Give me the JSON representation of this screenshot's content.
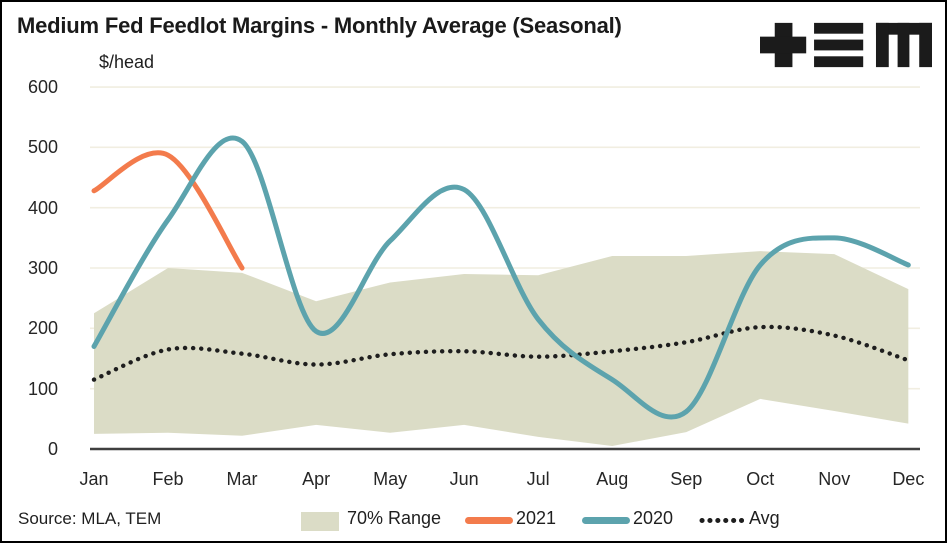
{
  "title": "Medium Fed Feedlot Margins - Monthly Average (Seasonal)",
  "units_label": "$/head",
  "source": "Source: MLA, TEM",
  "logo_name": "TEM logo",
  "legend": {
    "range": "70% Range",
    "y2021": "2021",
    "y2020": "2020",
    "avg": "Avg"
  },
  "colors": {
    "band": "#dbdcc6",
    "line_2021": "#f37b4c",
    "line_2020": "#5ca3ad",
    "avg_dots": "#1e1e1e",
    "gridline": "#f1eee1",
    "axis": "#3f3f3f",
    "logo": "#1b1b1b"
  },
  "chart_data": {
    "type": "line",
    "title": "Medium Fed Feedlot Margins - Monthly Average (Seasonal)",
    "xlabel": "",
    "ylabel": "$/head",
    "ylim": [
      0,
      600
    ],
    "y_ticks": [
      0,
      100,
      200,
      300,
      400,
      500,
      600
    ],
    "grid": true,
    "legend_position": "bottom",
    "categories": [
      "Jan",
      "Feb",
      "Mar",
      "Apr",
      "May",
      "Jun",
      "Jul",
      "Aug",
      "Sep",
      "Oct",
      "Nov",
      "Dec"
    ],
    "series": [
      {
        "name": "70% Range",
        "type": "band",
        "color": "#dbdcc6",
        "upper": [
          225,
          300,
          292,
          245,
          276,
          290,
          288,
          320,
          320,
          328,
          323,
          265
        ],
        "lower": [
          25,
          27,
          22,
          40,
          27,
          40,
          20,
          5,
          28,
          83,
          63,
          42
        ]
      },
      {
        "name": "2021",
        "type": "line",
        "color": "#f37b4c",
        "values": [
          428,
          487,
          300,
          null,
          null,
          null,
          null,
          null,
          null,
          null,
          null,
          null
        ]
      },
      {
        "name": "2020",
        "type": "line",
        "color": "#5ca3ad",
        "values": [
          170,
          380,
          510,
          195,
          345,
          430,
          215,
          115,
          62,
          305,
          350,
          305
        ]
      },
      {
        "name": "Avg",
        "type": "dotted-line",
        "color": "#1e1e1e",
        "values": [
          115,
          165,
          158,
          140,
          157,
          162,
          153,
          162,
          177,
          202,
          188,
          147
        ]
      }
    ]
  }
}
